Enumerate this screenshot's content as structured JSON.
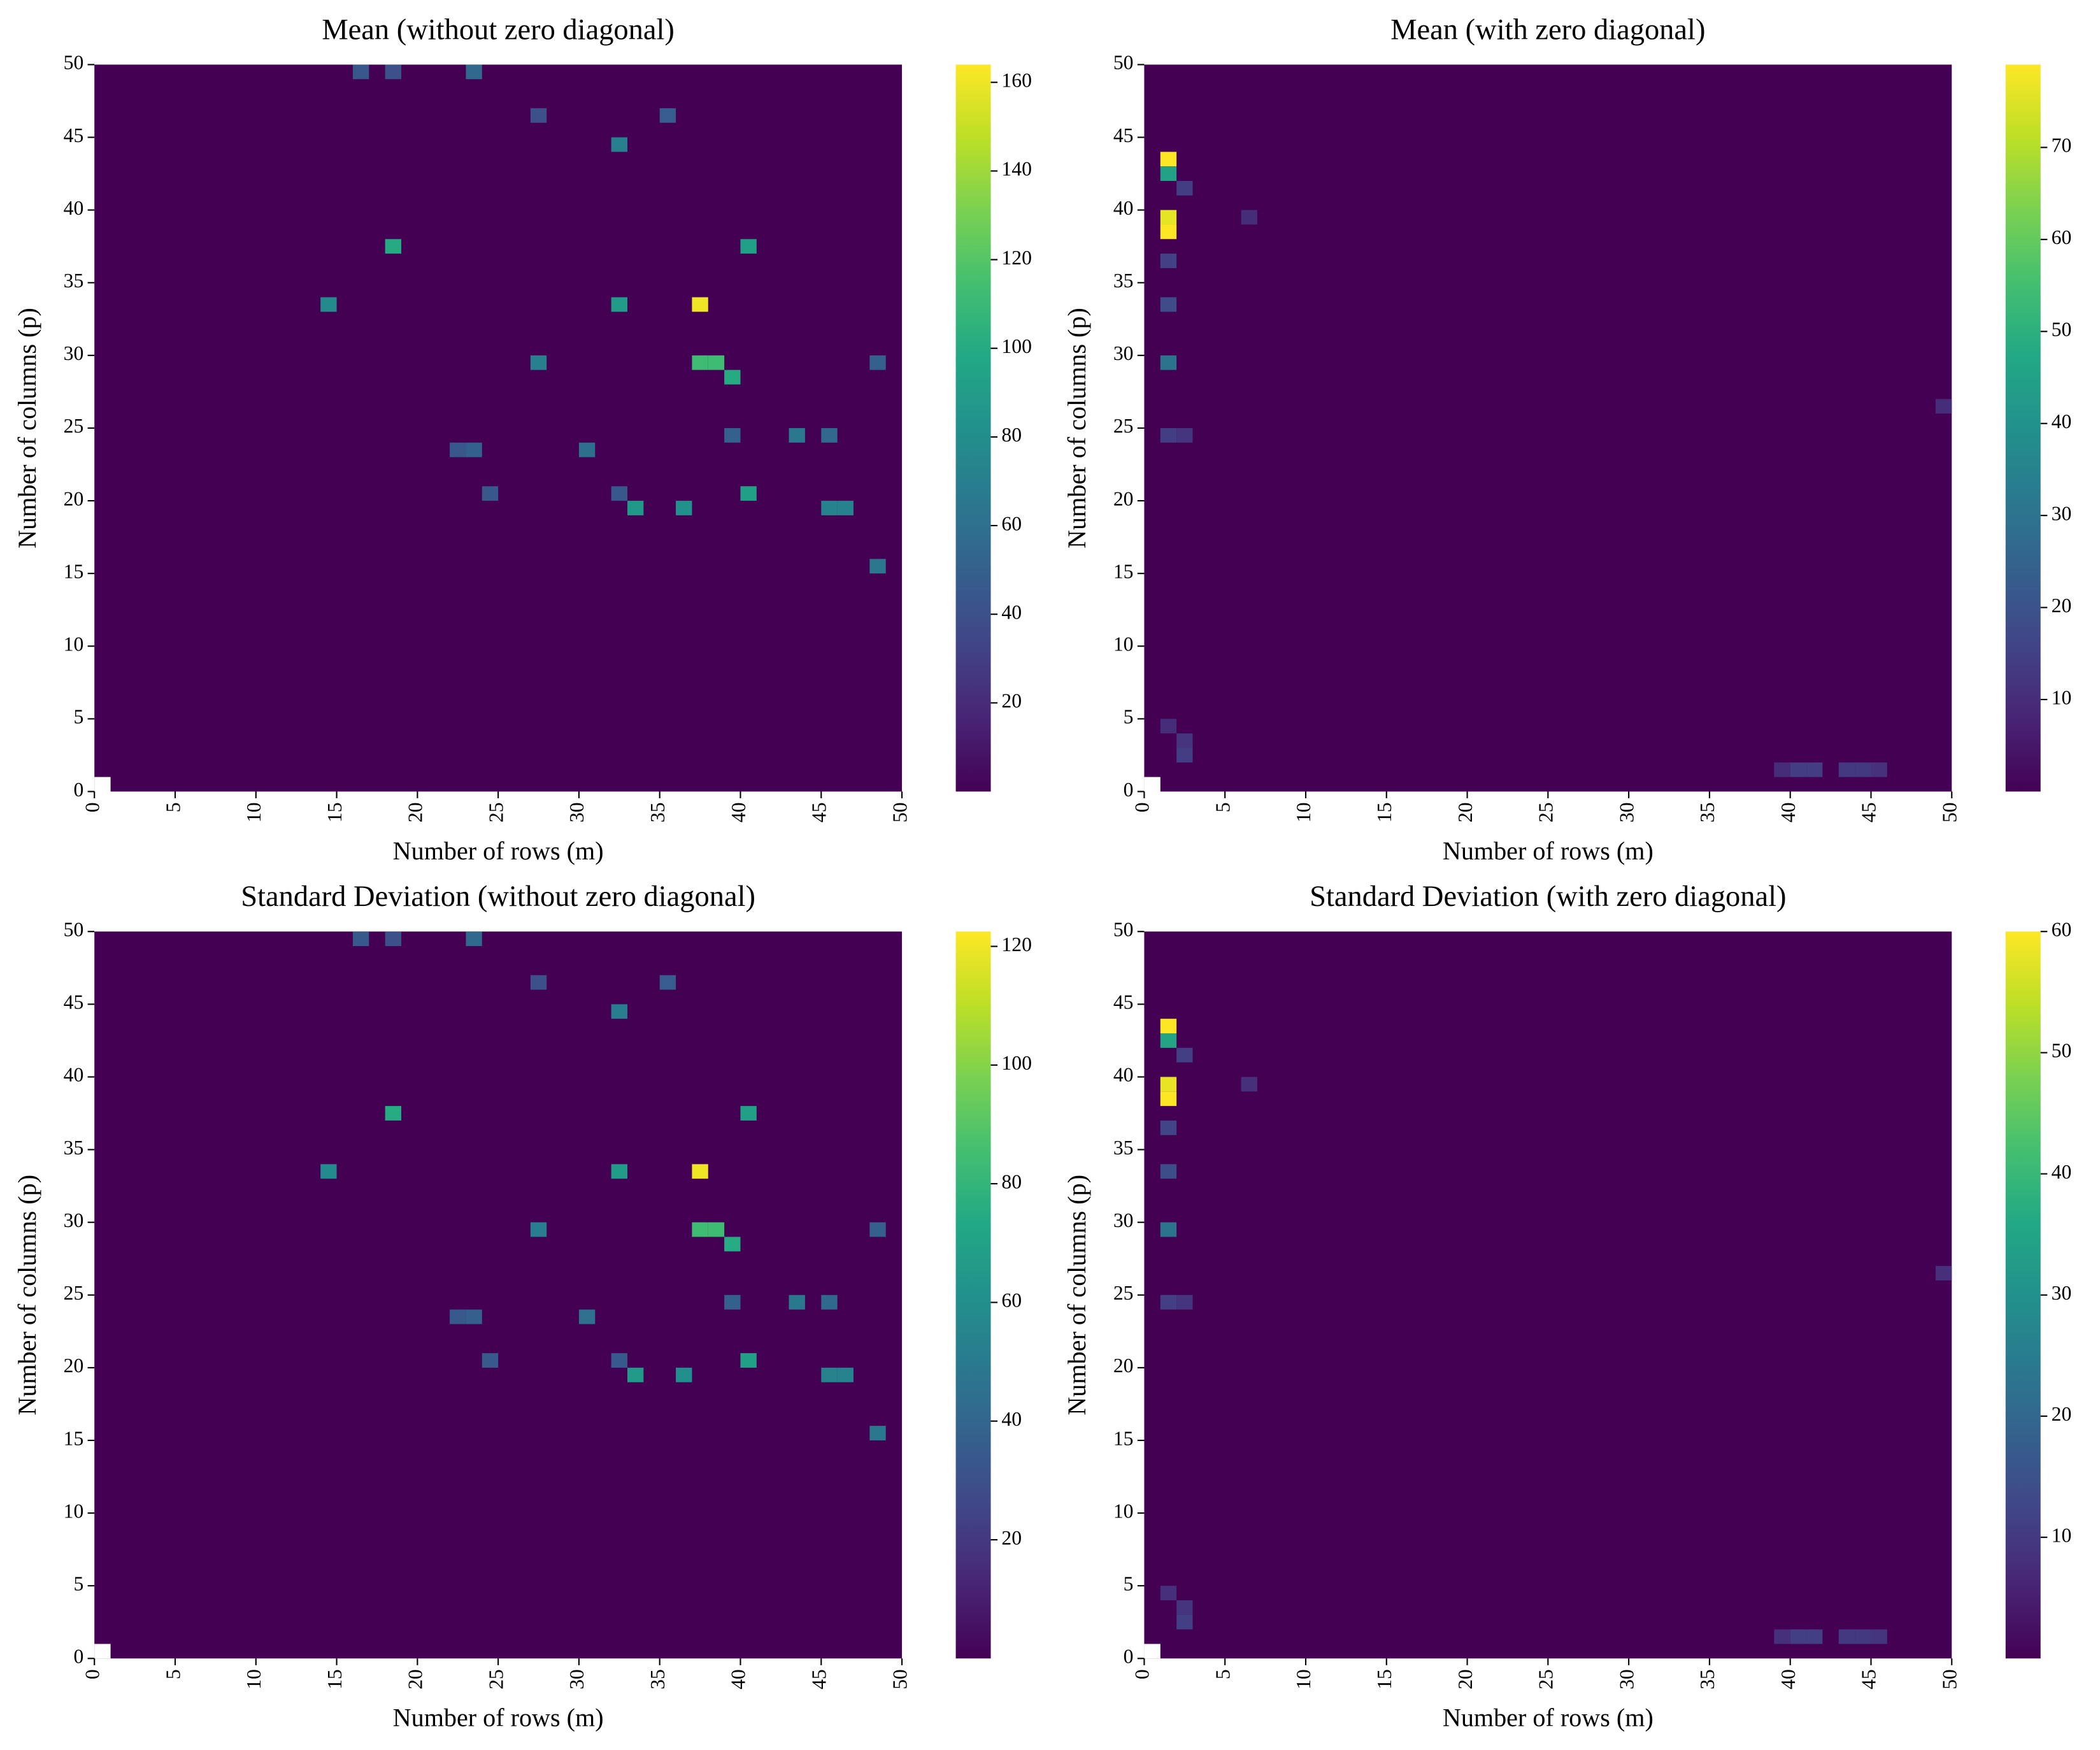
{
  "chart_data": [
    {
      "type": "heatmap",
      "title": "Mean (without zero diagonal)",
      "xlabel": "Number of rows (m)",
      "ylabel": "Number of columns (p)",
      "xlim": [
        0,
        50
      ],
      "ylim": [
        0,
        50
      ],
      "xticks": [
        0,
        5,
        10,
        15,
        20,
        25,
        30,
        35,
        40,
        45,
        50
      ],
      "yticks": [
        0,
        5,
        10,
        15,
        20,
        25,
        30,
        35,
        40,
        45,
        50
      ],
      "colormap": "viridis",
      "clim": [
        0,
        164
      ],
      "cticks": [
        20,
        40,
        60,
        80,
        100,
        120,
        140,
        160
      ],
      "cells": [
        {
          "x": 37,
          "y": 33,
          "value": 160
        },
        {
          "x": 14,
          "y": 33,
          "value": 78
        },
        {
          "x": 32,
          "y": 33,
          "value": 90
        },
        {
          "x": 18,
          "y": 37,
          "value": 100
        },
        {
          "x": 37,
          "y": 29,
          "value": 112
        },
        {
          "x": 38,
          "y": 29,
          "value": 112
        },
        {
          "x": 39,
          "y": 28,
          "value": 100
        },
        {
          "x": 40,
          "y": 37,
          "value": 92
        },
        {
          "x": 32,
          "y": 44,
          "value": 70
        },
        {
          "x": 33,
          "y": 19,
          "value": 88
        },
        {
          "x": 36,
          "y": 19,
          "value": 82
        },
        {
          "x": 40,
          "y": 20,
          "value": 92
        },
        {
          "x": 45,
          "y": 19,
          "value": 72
        },
        {
          "x": 46,
          "y": 19,
          "value": 72
        },
        {
          "x": 43,
          "y": 24,
          "value": 65
        },
        {
          "x": 45,
          "y": 24,
          "value": 55
        },
        {
          "x": 48,
          "y": 15,
          "value": 65
        },
        {
          "x": 27,
          "y": 29,
          "value": 70
        },
        {
          "x": 30,
          "y": 23,
          "value": 60
        },
        {
          "x": 23,
          "y": 23,
          "value": 50
        },
        {
          "x": 22,
          "y": 23,
          "value": 45
        },
        {
          "x": 23,
          "y": 49,
          "value": 55
        },
        {
          "x": 16,
          "y": 49,
          "value": 45
        },
        {
          "x": 18,
          "y": 49,
          "value": 40
        },
        {
          "x": 24,
          "y": 20,
          "value": 45
        },
        {
          "x": 32,
          "y": 20,
          "value": 45
        },
        {
          "x": 39,
          "y": 24,
          "value": 50
        },
        {
          "x": 35,
          "y": 46,
          "value": 48
        },
        {
          "x": 48,
          "y": 29,
          "value": 50
        },
        {
          "x": 27,
          "y": 46,
          "value": 40
        }
      ]
    },
    {
      "type": "heatmap",
      "title": "Mean (with zero diagonal)",
      "xlabel": "Number of rows (m)",
      "ylabel": "Number of columns (p)",
      "xlim": [
        0,
        50
      ],
      "ylim": [
        0,
        50
      ],
      "xticks": [
        0,
        5,
        10,
        15,
        20,
        25,
        30,
        35,
        40,
        45,
        50
      ],
      "yticks": [
        0,
        5,
        10,
        15,
        20,
        25,
        30,
        35,
        40,
        45,
        50
      ],
      "colormap": "viridis",
      "clim": [
        0,
        79
      ],
      "cticks": [
        10,
        20,
        30,
        40,
        50,
        60,
        70
      ],
      "cells": [
        {
          "x": 1,
          "y": 43,
          "value": 79
        },
        {
          "x": 1,
          "y": 42,
          "value": 45
        },
        {
          "x": 1,
          "y": 39,
          "value": 76
        },
        {
          "x": 1,
          "y": 38,
          "value": 79
        },
        {
          "x": 1,
          "y": 29,
          "value": 30
        },
        {
          "x": 1,
          "y": 33,
          "value": 18
        },
        {
          "x": 1,
          "y": 36,
          "value": 15
        },
        {
          "x": 1,
          "y": 24,
          "value": 14
        },
        {
          "x": 2,
          "y": 24,
          "value": 12
        },
        {
          "x": 2,
          "y": 41,
          "value": 14
        },
        {
          "x": 2,
          "y": 3,
          "value": 12
        },
        {
          "x": 2,
          "y": 2,
          "value": 14
        },
        {
          "x": 1,
          "y": 4,
          "value": 10
        },
        {
          "x": 40,
          "y": 1,
          "value": 14
        },
        {
          "x": 41,
          "y": 1,
          "value": 14
        },
        {
          "x": 43,
          "y": 1,
          "value": 13
        },
        {
          "x": 44,
          "y": 1,
          "value": 13
        },
        {
          "x": 45,
          "y": 1,
          "value": 11
        },
        {
          "x": 39,
          "y": 1,
          "value": 10
        },
        {
          "x": 6,
          "y": 39,
          "value": 10
        },
        {
          "x": 49,
          "y": 26,
          "value": 10
        }
      ]
    },
    {
      "type": "heatmap",
      "title": "Standard Deviation (without zero diagonal)",
      "xlabel": "Number of rows (m)",
      "ylabel": "Number of columns (p)",
      "xlim": [
        0,
        50
      ],
      "ylim": [
        0,
        50
      ],
      "xticks": [
        0,
        5,
        10,
        15,
        20,
        25,
        30,
        35,
        40,
        45,
        50
      ],
      "yticks": [
        0,
        5,
        10,
        15,
        20,
        25,
        30,
        35,
        40,
        45,
        50
      ],
      "colormap": "viridis",
      "clim": [
        0,
        122.5
      ],
      "cticks": [
        20,
        40,
        60,
        80,
        100,
        120
      ],
      "cells": [
        {
          "x": 37,
          "y": 33,
          "value": 120
        },
        {
          "x": 14,
          "y": 33,
          "value": 58
        },
        {
          "x": 32,
          "y": 33,
          "value": 67
        },
        {
          "x": 18,
          "y": 37,
          "value": 75
        },
        {
          "x": 37,
          "y": 29,
          "value": 84
        },
        {
          "x": 38,
          "y": 29,
          "value": 84
        },
        {
          "x": 39,
          "y": 28,
          "value": 75
        },
        {
          "x": 40,
          "y": 37,
          "value": 69
        },
        {
          "x": 32,
          "y": 44,
          "value": 52
        },
        {
          "x": 33,
          "y": 19,
          "value": 66
        },
        {
          "x": 36,
          "y": 19,
          "value": 61
        },
        {
          "x": 40,
          "y": 20,
          "value": 69
        },
        {
          "x": 45,
          "y": 19,
          "value": 54
        },
        {
          "x": 46,
          "y": 19,
          "value": 54
        },
        {
          "x": 43,
          "y": 24,
          "value": 49
        },
        {
          "x": 45,
          "y": 24,
          "value": 41
        },
        {
          "x": 48,
          "y": 15,
          "value": 49
        },
        {
          "x": 27,
          "y": 29,
          "value": 52
        },
        {
          "x": 30,
          "y": 23,
          "value": 45
        },
        {
          "x": 23,
          "y": 23,
          "value": 37
        },
        {
          "x": 22,
          "y": 23,
          "value": 34
        },
        {
          "x": 23,
          "y": 49,
          "value": 41
        },
        {
          "x": 16,
          "y": 49,
          "value": 34
        },
        {
          "x": 18,
          "y": 49,
          "value": 30
        },
        {
          "x": 24,
          "y": 20,
          "value": 34
        },
        {
          "x": 32,
          "y": 20,
          "value": 34
        },
        {
          "x": 39,
          "y": 24,
          "value": 37
        },
        {
          "x": 35,
          "y": 46,
          "value": 36
        },
        {
          "x": 48,
          "y": 29,
          "value": 37
        },
        {
          "x": 27,
          "y": 46,
          "value": 30
        }
      ]
    },
    {
      "type": "heatmap",
      "title": "Standard Deviation (with zero diagonal)",
      "xlabel": "Number of rows (m)",
      "ylabel": "Number of columns (p)",
      "xlim": [
        0,
        50
      ],
      "ylim": [
        0,
        50
      ],
      "xticks": [
        0,
        5,
        10,
        15,
        20,
        25,
        30,
        35,
        40,
        45,
        50
      ],
      "yticks": [
        0,
        5,
        10,
        15,
        20,
        25,
        30,
        35,
        40,
        45,
        50
      ],
      "colormap": "viridis",
      "clim": [
        0,
        60
      ],
      "cticks": [
        10,
        20,
        30,
        40,
        50,
        60
      ],
      "cells": [
        {
          "x": 1,
          "y": 43,
          "value": 60
        },
        {
          "x": 1,
          "y": 42,
          "value": 35
        },
        {
          "x": 1,
          "y": 39,
          "value": 58
        },
        {
          "x": 1,
          "y": 38,
          "value": 60
        },
        {
          "x": 1,
          "y": 29,
          "value": 23
        },
        {
          "x": 1,
          "y": 33,
          "value": 14
        },
        {
          "x": 1,
          "y": 36,
          "value": 12
        },
        {
          "x": 1,
          "y": 24,
          "value": 11
        },
        {
          "x": 2,
          "y": 24,
          "value": 9
        },
        {
          "x": 2,
          "y": 41,
          "value": 11
        },
        {
          "x": 2,
          "y": 3,
          "value": 9
        },
        {
          "x": 2,
          "y": 2,
          "value": 11
        },
        {
          "x": 1,
          "y": 4,
          "value": 8
        },
        {
          "x": 40,
          "y": 1,
          "value": 11
        },
        {
          "x": 41,
          "y": 1,
          "value": 11
        },
        {
          "x": 43,
          "y": 1,
          "value": 10
        },
        {
          "x": 44,
          "y": 1,
          "value": 10
        },
        {
          "x": 45,
          "y": 1,
          "value": 9
        },
        {
          "x": 39,
          "y": 1,
          "value": 8
        },
        {
          "x": 6,
          "y": 39,
          "value": 8
        },
        {
          "x": 49,
          "y": 26,
          "value": 8
        }
      ]
    }
  ]
}
